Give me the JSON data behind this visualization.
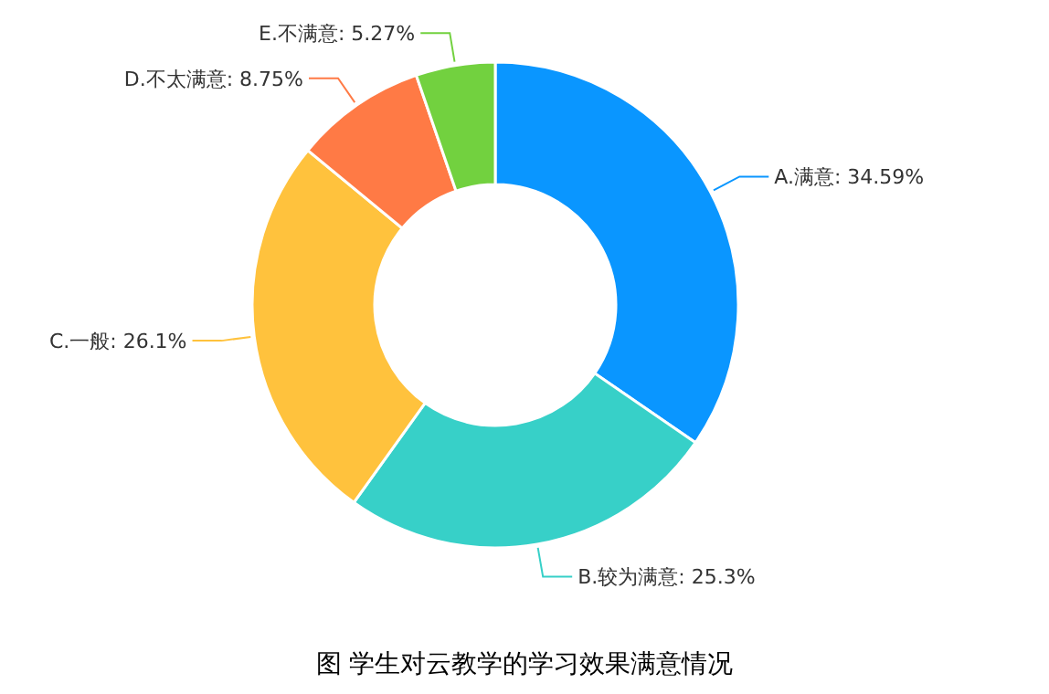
{
  "chart_data": {
    "type": "donut",
    "categories": [
      "A.满意",
      "B.较为满意",
      "C.一般",
      "D.不太满意",
      "E.不满意"
    ],
    "values": [
      34.59,
      25.3,
      26.1,
      8.75,
      5.27
    ],
    "colors": [
      "#0a96ff",
      "#37d0c8",
      "#ffc23d",
      "#ff7a45",
      "#72d13f"
    ],
    "value_labels": [
      "34.59%",
      "25.3%",
      "26.1%",
      "8.75%",
      "5.27%"
    ],
    "annotations": [
      "图  学生对云教学的学习效果满意情况"
    ]
  }
}
